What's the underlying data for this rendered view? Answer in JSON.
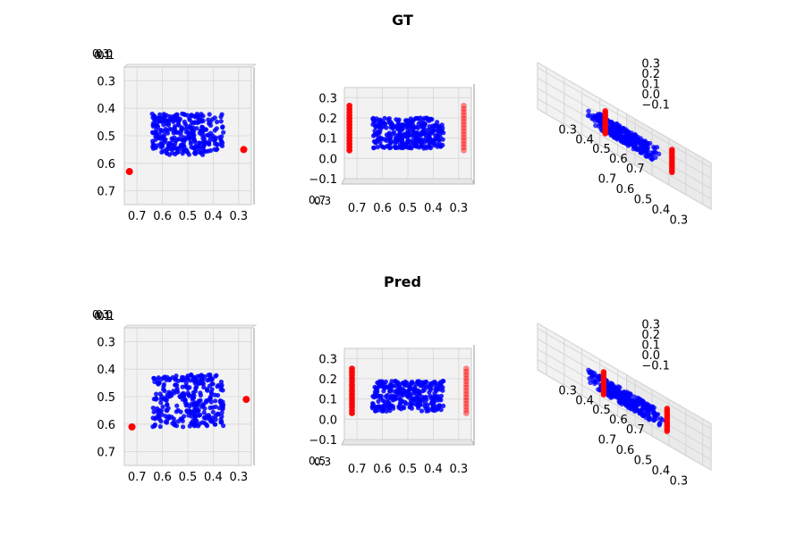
{
  "rows": [
    {
      "title": "GT"
    },
    {
      "title": "Pred"
    }
  ],
  "colors": {
    "object": "#0000ff",
    "gripper": "#ff0000",
    "pane": "#f2f2f2",
    "grid": "#d6d6d6"
  },
  "chart_data": [
    {
      "type": "scatter",
      "title": "GT",
      "projection": "3d",
      "views": [
        "top",
        "front",
        "perspective"
      ],
      "axes": {
        "x": [
          0.25,
          0.75
        ],
        "y": [
          0.25,
          0.75
        ],
        "z": [
          -0.1,
          0.35
        ]
      },
      "tick_labels": {
        "top_x": [
          "0.7",
          "0.6",
          "0.5",
          "0.4",
          "0.3"
        ],
        "top_y": [
          "0.3",
          "0.4",
          "0.5",
          "0.6",
          "0.7"
        ],
        "top_z": [
          "0.3",
          "0.1",
          "0.0",
          "0.1"
        ],
        "front_x": [
          "0.7",
          "0.6",
          "0.5",
          "0.4",
          "0.3"
        ],
        "front_z": [
          "0.3",
          "0.2",
          "0.1",
          "0.0",
          "−0.1"
        ],
        "front_y": [
          "0.7",
          "0.3"
        ],
        "persp_x": [
          "0.7",
          "0.6",
          "0.5",
          "0.4",
          "0.3"
        ],
        "persp_y": [
          "0.3",
          "0.4",
          "0.5",
          "0.6",
          "0.7"
        ],
        "persp_z": [
          "0.3",
          "0.2",
          "0.1",
          "0.0",
          "−0.1"
        ]
      },
      "series": [
        {
          "color": "#0000ff",
          "shape": "box",
          "x": [
            0.36,
            0.64
          ],
          "y": [
            0.42,
            0.57
          ],
          "z": [
            0.05,
            0.2
          ],
          "n_points": 300
        },
        {
          "color": "#ff0000",
          "shape": "vertical-column",
          "x": 0.73,
          "y": 0.63,
          "z": [
            0.04,
            0.26
          ]
        },
        {
          "color": "#ff0000",
          "shape": "vertical-column",
          "x": 0.28,
          "y": 0.55,
          "z": [
            0.04,
            0.26
          ]
        }
      ]
    },
    {
      "type": "scatter",
      "title": "Pred",
      "projection": "3d",
      "views": [
        "top",
        "front",
        "perspective"
      ],
      "axes": {
        "x": [
          0.25,
          0.75
        ],
        "y": [
          0.25,
          0.75
        ],
        "z": [
          -0.1,
          0.35
        ]
      },
      "tick_labels": {
        "top_x": [
          "0.7",
          "0.6",
          "0.5",
          "0.4",
          "0.3"
        ],
        "top_y": [
          "0.3",
          "0.4",
          "0.5",
          "0.6",
          "0.7"
        ],
        "top_z": [
          "0.3",
          "0.1",
          "0.0",
          "0.1"
        ],
        "front_x": [
          "0.7",
          "0.6",
          "0.5",
          "0.4",
          "0.3"
        ],
        "front_z": [
          "0.3",
          "0.2",
          "0.1",
          "0.0",
          "−0.1"
        ],
        "front_y": [
          "0.5",
          "0.3"
        ],
        "persp_x": [
          "0.7",
          "0.6",
          "0.5",
          "0.4",
          "0.3"
        ],
        "persp_y": [
          "0.3",
          "0.4",
          "0.5",
          "0.6",
          "0.7"
        ],
        "persp_z": [
          "0.3",
          "0.2",
          "0.1",
          "0.0",
          "−0.1"
        ]
      },
      "series": [
        {
          "color": "#0000ff",
          "shape": "box",
          "x": [
            0.36,
            0.64
          ],
          "y": [
            0.42,
            0.61
          ],
          "z": [
            0.04,
            0.19
          ],
          "n_points": 300
        },
        {
          "color": "#ff0000",
          "shape": "vertical-column",
          "x": 0.72,
          "y": 0.61,
          "z": [
            0.03,
            0.25
          ]
        },
        {
          "color": "#ff0000",
          "shape": "vertical-column",
          "x": 0.27,
          "y": 0.51,
          "z": [
            0.03,
            0.25
          ]
        }
      ]
    }
  ]
}
